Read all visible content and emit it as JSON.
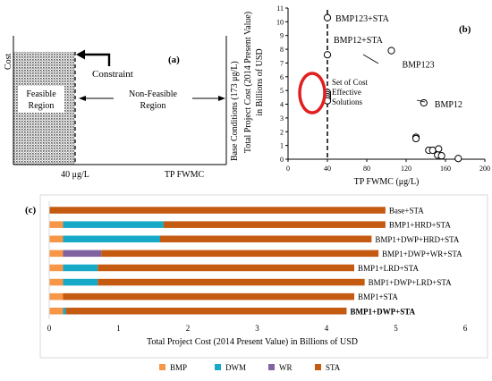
{
  "panel_a": {
    "panel_label": "(a)",
    "ylabel": "Cost",
    "xlabel": "TP FWMC",
    "threshold_label": "40 μg/L",
    "feasible_label_line1": "Feasible",
    "feasible_label_line2": "Region",
    "nonfeasible_label_line1": "Non-Feasible",
    "nonfeasible_label_line2": "Region",
    "constraint_label": "Constraint",
    "base_label": "Base Conditions (173 μg/L)"
  },
  "panel_b": {
    "panel_label": "(b)",
    "ylabel_line1": "Total Project Cost (2014 Present Value)",
    "ylabel_line2": "in Billions of USD",
    "xlabel": "TP FWMC (μg/L)",
    "annotation_line1": "Set of Cost",
    "annotation_line2": "Effective",
    "annotation_line3": "Solutions"
  },
  "panel_c": {
    "panel_label": "(c)",
    "highlight_color": "#e02020"
  },
  "chart_data": [
    {
      "type": "scatter",
      "panel": "b",
      "xlabel": "TP FWMC (μg/L)",
      "ylabel": "Total Project Cost (2014 Present Value) in Billions of USD",
      "xlim": [
        0,
        200
      ],
      "ylim": [
        0,
        11
      ],
      "xticks": [
        0,
        40,
        80,
        120,
        160,
        200
      ],
      "yticks": [
        0,
        1,
        2,
        3,
        4,
        5,
        6,
        7,
        8,
        9,
        10,
        11
      ],
      "threshold_x": 40,
      "points": [
        {
          "x": 40,
          "y": 10.3,
          "label": "BMP123+STA"
        },
        {
          "x": 40,
          "y": 7.6,
          "label": "BMP12+STA"
        },
        {
          "x": 105,
          "y": 7.9,
          "label": "BMP123"
        },
        {
          "x": 138,
          "y": 4.1,
          "label": "BMP12"
        },
        {
          "x": 40,
          "y": 4.85,
          "label": ""
        },
        {
          "x": 40,
          "y": 4.7,
          "label": ""
        },
        {
          "x": 40,
          "y": 4.55,
          "label": ""
        },
        {
          "x": 40,
          "y": 4.4,
          "label": ""
        },
        {
          "x": 40,
          "y": 4.25,
          "label": ""
        },
        {
          "x": 130,
          "y": 1.6,
          "label": ""
        },
        {
          "x": 130,
          "y": 1.5,
          "label": ""
        },
        {
          "x": 143,
          "y": 0.65,
          "label": ""
        },
        {
          "x": 147,
          "y": 0.65,
          "label": ""
        },
        {
          "x": 153,
          "y": 0.75,
          "label": ""
        },
        {
          "x": 152,
          "y": 0.3,
          "label": ""
        },
        {
          "x": 156,
          "y": 0.25,
          "label": ""
        },
        {
          "x": 173,
          "y": 0.05,
          "label": ""
        }
      ]
    },
    {
      "type": "bar",
      "panel": "c",
      "orientation": "horizontal",
      "stacked": true,
      "xlabel": "Total Project Cost (2014 Present Value) in Billions of USD",
      "xlim": [
        0,
        6
      ],
      "xticks": [
        0,
        1,
        2,
        3,
        4,
        5,
        6
      ],
      "categories": [
        "Base+STA",
        "BMP1+HRD+STA",
        "BMP1+DWP+HRD+STA",
        "BMP1+DWP+WR+STA",
        "BMP1+LRD+STA",
        "BMP1+DWP+LRD+STA",
        "BMP1+STA",
        "BMP1+DWP+STA"
      ],
      "bold_category": "BMP1+DWP+STA",
      "legend_position": "bottom",
      "series": [
        {
          "name": "BMP",
          "color": "#f79646",
          "values": [
            0,
            0.2,
            0.2,
            0.2,
            0.2,
            0.2,
            0.2,
            0.2
          ]
        },
        {
          "name": "DWM",
          "color": "#17a9c8",
          "values": [
            0,
            1.45,
            1.4,
            0,
            0.5,
            0.5,
            0,
            0.04
          ]
        },
        {
          "name": "WR",
          "color": "#8064a2",
          "values": [
            0,
            0,
            0,
            0.55,
            0,
            0,
            0,
            0
          ]
        },
        {
          "name": "STA",
          "color": "#c55a11",
          "values": [
            4.85,
            3.2,
            3.05,
            4.0,
            3.7,
            3.85,
            4.2,
            4.05
          ]
        }
      ]
    }
  ]
}
